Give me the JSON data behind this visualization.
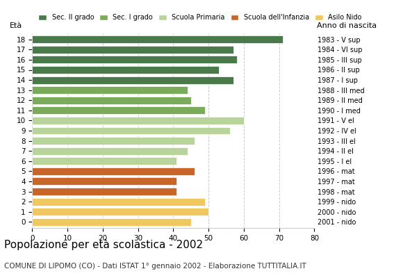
{
  "ages": [
    18,
    17,
    16,
    15,
    14,
    13,
    12,
    11,
    10,
    9,
    8,
    7,
    6,
    5,
    4,
    3,
    2,
    1,
    0
  ],
  "values": [
    71,
    57,
    58,
    53,
    57,
    44,
    45,
    49,
    60,
    56,
    46,
    44,
    41,
    46,
    41,
    41,
    49,
    50,
    45
  ],
  "right_labels": [
    "1983 - V sup",
    "1984 - VI sup",
    "1985 - III sup",
    "1986 - II sup",
    "1987 - I sup",
    "1988 - III med",
    "1989 - II med",
    "1990 - I med",
    "1991 - V el",
    "1992 - IV el",
    "1993 - III el",
    "1994 - II el",
    "1995 - I el",
    "1996 - mat",
    "1997 - mat",
    "1998 - mat",
    "1999 - nido",
    "2000 - nido",
    "2001 - nido"
  ],
  "bar_colors": [
    "#4a7a4a",
    "#4a7a4a",
    "#4a7a4a",
    "#4a7a4a",
    "#4a7a4a",
    "#7aaa5a",
    "#7aaa5a",
    "#7aaa5a",
    "#b8d49a",
    "#b8d49a",
    "#b8d49a",
    "#b8d49a",
    "#b8d49a",
    "#c8662a",
    "#c8662a",
    "#c8662a",
    "#f0c860",
    "#f0c860",
    "#f0c860"
  ],
  "legend_labels": [
    "Sec. II grado",
    "Sec. I grado",
    "Scuola Primaria",
    "Scuola dell'Infanzia",
    "Asilo Nido"
  ],
  "legend_colors": [
    "#4a7a4a",
    "#7aaa5a",
    "#b8d49a",
    "#c8662a",
    "#f0c860"
  ],
  "title": "Popolazione per età scolastica - 2002",
  "subtitle": "COMUNE DI LIPOMO (CO) - Dati ISTAT 1° gennaio 2002 - Elaborazione TUTTITALIA.IT",
  "xlabel_eta": "Età",
  "xlabel_anno": "Anno di nascita",
  "xlim": [
    0,
    80
  ],
  "xticks": [
    0,
    10,
    20,
    30,
    40,
    50,
    60,
    70,
    80
  ],
  "background_color": "#ffffff",
  "bar_height": 0.75
}
